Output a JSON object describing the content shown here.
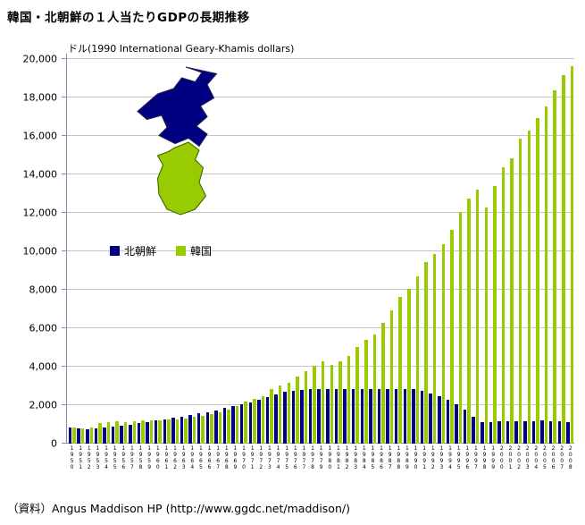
{
  "title": "韓国・北朝鮮の１人当たりGDPの長期推移",
  "unit_label": "ドル(1990 International Geary-Khamis dollars)",
  "source": "（資料）Angus Maddison HP (http://www.ggdc.net/maddison/)",
  "legend": {
    "north_label": "北朝鮮",
    "south_label": "韓国"
  },
  "colors": {
    "north": "#000080",
    "south": "#99cc00",
    "grid": "#c6c6c6",
    "axis": "#8a8aa8"
  },
  "chart_data": {
    "type": "bar",
    "title": "韓国・北朝鮮の１人当たりGDPの長期推移",
    "ylabel": "ドル(1990 International Geary-Khamis dollars)",
    "ylim": [
      0,
      20000
    ],
    "ytick_step": 2000,
    "grid": true,
    "legend_position": "inside-upper-left",
    "categories": [
      1950,
      1951,
      1952,
      1953,
      1954,
      1955,
      1956,
      1957,
      1958,
      1959,
      1960,
      1961,
      1962,
      1963,
      1964,
      1965,
      1966,
      1967,
      1968,
      1969,
      1970,
      1971,
      1972,
      1973,
      1974,
      1975,
      1976,
      1977,
      1978,
      1979,
      1980,
      1981,
      1982,
      1983,
      1984,
      1985,
      1986,
      1987,
      1988,
      1989,
      1990,
      1991,
      1992,
      1993,
      1994,
      1995,
      1996,
      1997,
      1998,
      1999,
      2000,
      2001,
      2002,
      2003,
      2004,
      2005,
      2006,
      2007,
      2008
    ],
    "series": [
      {
        "name": "北朝鮮",
        "color": "#000080",
        "values": [
          850,
          780,
          750,
          790,
          840,
          900,
          950,
          1000,
          1060,
          1120,
          1190,
          1260,
          1330,
          1400,
          1480,
          1560,
          1650,
          1740,
          1840,
          1940,
          2048,
          2160,
          2280,
          2410,
          2540,
          2680,
          2750,
          2800,
          2830,
          2841,
          2841,
          2841,
          2841,
          2841,
          2841,
          2841,
          2841,
          2841,
          2841,
          2841,
          2841,
          2750,
          2610,
          2450,
          2280,
          2050,
          1750,
          1400,
          1122,
          1135,
          1146,
          1156,
          1165,
          1174,
          1183,
          1191,
          1180,
          1160,
          1122
        ]
      },
      {
        "name": "韓国",
        "color": "#99cc00",
        "values": [
          854,
          806,
          848,
          1072,
          1109,
          1155,
          1138,
          1185,
          1215,
          1218,
          1226,
          1247,
          1245,
          1316,
          1390,
          1436,
          1556,
          1608,
          1748,
          1949,
          2167,
          2332,
          2456,
          2824,
          3015,
          3162,
          3476,
          3775,
          4064,
          4294,
          4114,
          4302,
          4557,
          5007,
          5375,
          5670,
          6263,
          6916,
          7621,
          8027,
          8704,
          9445,
          9883,
          10361,
          11129,
          12024,
          12729,
          13228,
          12263,
          13403,
          14375,
          14860,
          15840,
          16268,
          16935,
          17547,
          18356,
          19143,
          19614
        ]
      }
    ]
  }
}
